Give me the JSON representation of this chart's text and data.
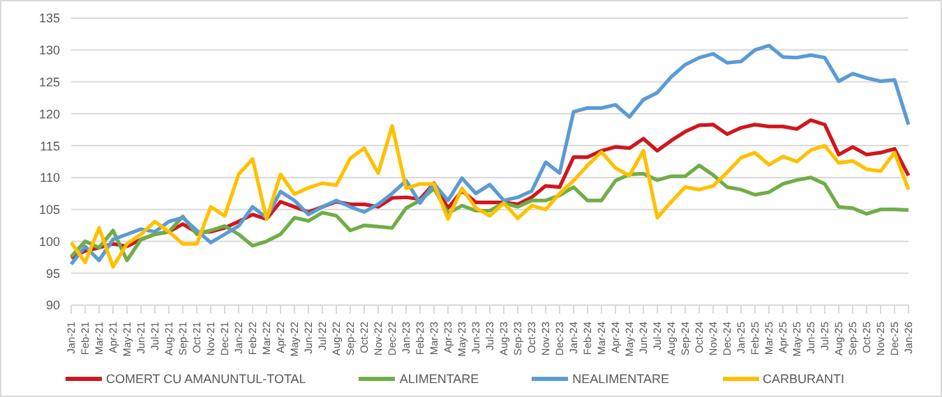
{
  "chart_data": {
    "type": "line",
    "categories": [
      "Jan-21",
      "Feb-21",
      "Mar-21",
      "Apr-21",
      "May-21",
      "Jun-21",
      "Jul-21",
      "Aug-21",
      "Sep-21",
      "Oct-21",
      "Nov-21",
      "Dec-21",
      "Jan-22",
      "Feb-22",
      "Mar-22",
      "Apr-22",
      "May-22",
      "Jun-22",
      "Jul-22",
      "Aug-22",
      "Sep-22",
      "Oct-22",
      "Nov-22",
      "Dec-22",
      "Jan-23",
      "Feb-23",
      "Mar-23",
      "Apr-23",
      "May-23",
      "Jun-23",
      "Jul-23",
      "Aug-23",
      "Sep-23",
      "Oct-23",
      "Nov-23",
      "Dec-23",
      "Jan-24",
      "Feb-24",
      "Mar-24",
      "Apr-24",
      "May-24",
      "Jun-24",
      "Jul-24",
      "Aug-24",
      "Sep-24",
      "Oct-24",
      "Nov-24",
      "Dec-24",
      "Jan-25",
      "Feb-25",
      "Mar-25",
      "Apr-25",
      "May-25",
      "Jun-25",
      "Jul-25",
      "Aug-25",
      "Sep-25",
      "Oct-25",
      "Nov-25",
      "Dec-25",
      "Jan-26"
    ],
    "series": [
      {
        "name": "COMERT CU AMANUNTUL-TOTAL",
        "color": "#d0161e",
        "values": [
          97.4,
          98.5,
          99,
          99.6,
          99.2,
          100.3,
          101.1,
          101.5,
          102.7,
          101.4,
          101.5,
          102.1,
          103.1,
          104.2,
          103.5,
          106.2,
          105.4,
          104.6,
          105.4,
          106.2,
          105.8,
          105.8,
          105.4,
          106.8,
          106.9,
          106.6,
          109.1,
          105.2,
          107.9,
          106.1,
          106.1,
          106.1,
          105.8,
          106.9,
          108.7,
          108.5,
          113.2,
          113.2,
          114.2,
          114.8,
          114.6,
          116.1,
          114.2,
          115.8,
          117.2,
          118.2,
          118.3,
          116.8,
          117.8,
          118.3,
          118,
          118,
          117.6,
          119,
          118.3,
          113.6,
          114.8,
          113.6,
          113.9,
          114.5,
          110.3
        ]
      },
      {
        "name": "ALIMENTARE",
        "color": "#70ad47",
        "values": [
          97.6,
          100,
          99,
          101.7,
          97,
          100.3,
          101.1,
          101.5,
          103.9,
          101.1,
          101.7,
          102.4,
          101.1,
          99.3,
          100,
          101.1,
          103.7,
          103.2,
          104.5,
          104,
          101.7,
          102.5,
          102.3,
          102.1,
          105.2,
          106.4,
          108.3,
          104.4,
          105.6,
          104.8,
          104.8,
          106,
          105.4,
          106.4,
          106.4,
          107.2,
          108.5,
          106.4,
          106.4,
          109.5,
          110.5,
          110.6,
          109.6,
          110.2,
          110.2,
          111.9,
          110.4,
          108.5,
          108.1,
          107.3,
          107.7,
          109,
          109.6,
          110,
          109,
          105.4,
          105.2,
          104.3,
          105,
          105,
          104.9
        ]
      },
      {
        "name": "NEALIMENTARE",
        "color": "#5b9bd5",
        "values": [
          96.4,
          99.2,
          97,
          100.3,
          101.1,
          101.9,
          101.5,
          103.1,
          103.7,
          101.7,
          99.8,
          101.1,
          102.4,
          105.4,
          103.7,
          107.8,
          106.4,
          104.2,
          105.4,
          106.4,
          105.4,
          104.6,
          105.8,
          107.5,
          109.5,
          106,
          109,
          106.4,
          109.9,
          107.5,
          108.9,
          106.4,
          106.9,
          107.9,
          112.4,
          110.7,
          120.3,
          120.9,
          120.9,
          121.4,
          119.5,
          122.2,
          123.3,
          125.8,
          127.7,
          128.8,
          129.4,
          128,
          128.2,
          130,
          130.7,
          128.9,
          128.8,
          129.2,
          128.8,
          125.1,
          126.3,
          125.6,
          125.1,
          125.3,
          118.3
        ]
      },
      {
        "name": "CARBURANTI",
        "color": "#ffc000",
        "values": [
          99.8,
          96.7,
          102.1,
          96,
          99.6,
          101.1,
          103.1,
          101.5,
          99.6,
          99.6,
          105.4,
          104,
          110.5,
          112.9,
          103.5,
          110.5,
          107.4,
          108.4,
          109.1,
          108.8,
          113,
          114.6,
          110.7,
          118.1,
          108.3,
          109,
          109,
          103.5,
          108.3,
          105.2,
          104,
          106,
          103.6,
          105.6,
          105,
          107.5,
          109.5,
          111.9,
          114,
          111.5,
          110.3,
          114.2,
          103.7,
          106.2,
          108.5,
          108.1,
          108.7,
          110.8,
          113.1,
          113.9,
          112,
          113.3,
          112.5,
          114.3,
          115,
          112.3,
          112.6,
          111.3,
          111,
          113.9,
          108.1
        ]
      }
    ],
    "ylim": [
      90,
      135
    ],
    "yticks": [
      90,
      95,
      100,
      105,
      110,
      115,
      120,
      125,
      130,
      135
    ],
    "grid": "y",
    "legend": "bottom",
    "marker": "none",
    "line_style": "solid"
  }
}
